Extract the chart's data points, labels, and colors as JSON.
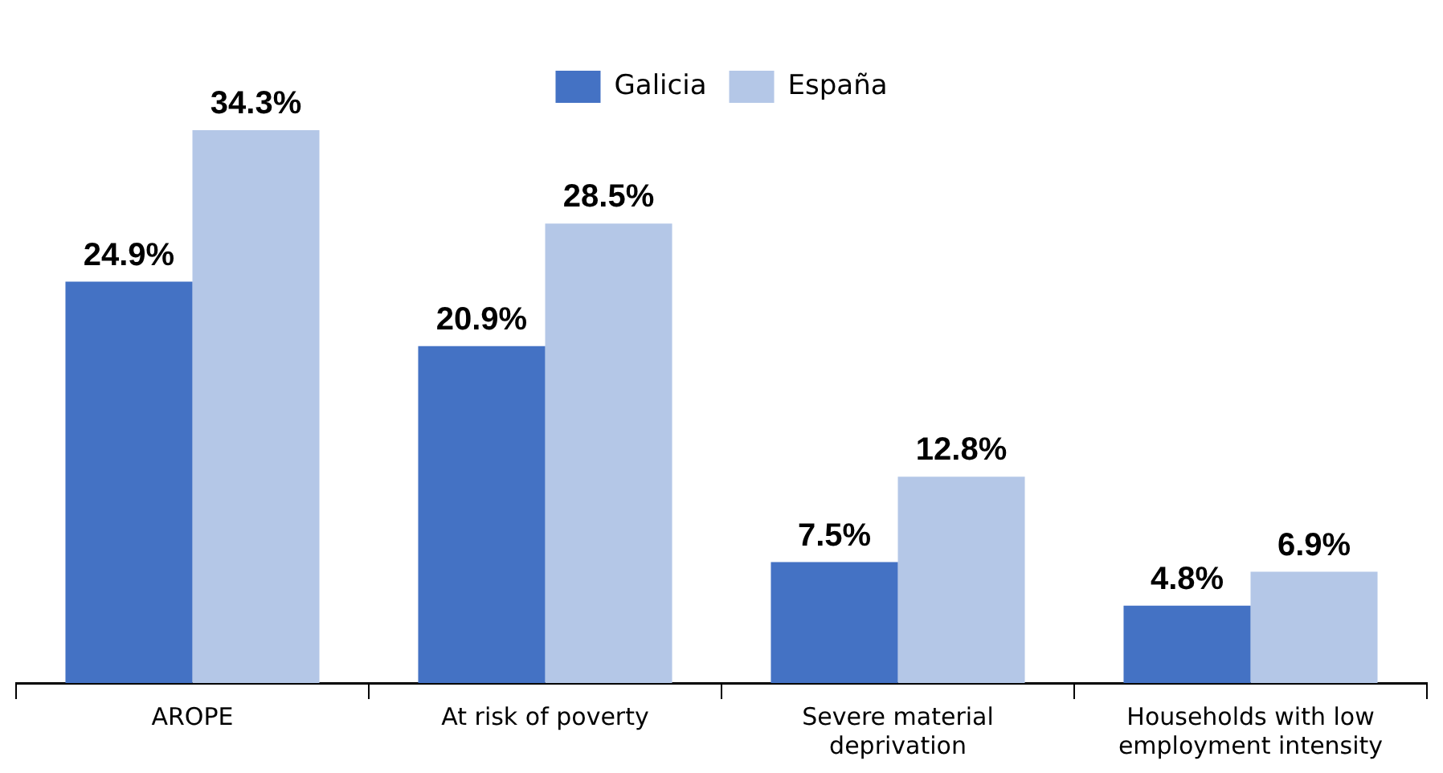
{
  "chart_data": {
    "type": "bar",
    "categories": [
      "AROPE",
      "At risk of poverty",
      "Severe material deprivation",
      "Households with low employment intensity"
    ],
    "series": [
      {
        "name": "Galicia",
        "color": "#4472c4",
        "values": [
          24.9,
          20.9,
          7.5,
          4.8
        ],
        "value_labels": [
          "24.9%",
          "20.9%",
          "7.5%",
          "4.8%"
        ]
      },
      {
        "name": "España",
        "color": "#b4c7e7",
        "values": [
          34.3,
          28.5,
          12.8,
          6.9
        ],
        "value_labels": [
          "34.3%",
          "28.5%",
          "12.8%",
          "6.9%"
        ]
      }
    ],
    "legend": "top",
    "tick_labels": "x"
  }
}
